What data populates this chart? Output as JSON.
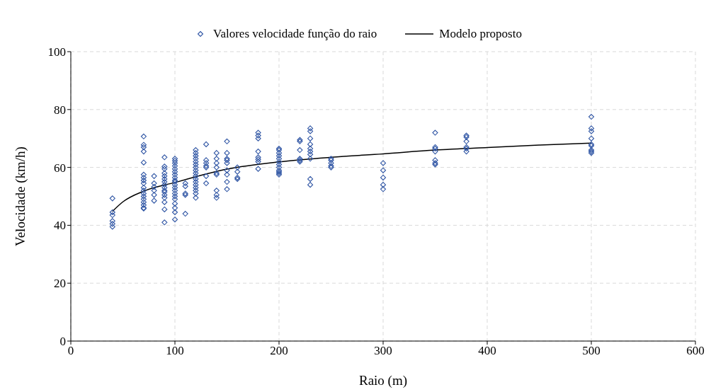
{
  "chart_data": {
    "type": "scatter",
    "xlabel": "Raio (m)",
    "ylabel": "Velocidade (km/h)",
    "xlim": [
      0,
      600
    ],
    "xticks": [
      0,
      100,
      200,
      300,
      400,
      500,
      600
    ],
    "ylim": [
      0,
      100
    ],
    "yticks": [
      0,
      20,
      40,
      60,
      80,
      100
    ],
    "grid": true,
    "legend": "top",
    "series": [
      {
        "name": "Valores velocidade função do raio",
        "marker": "diamond",
        "color": "#2f55a4",
        "x": [
          40,
          40,
          40,
          40,
          40,
          40,
          70,
          70,
          70,
          70,
          70,
          70,
          70,
          70,
          70,
          70,
          70,
          70,
          70,
          70,
          70,
          70,
          70,
          70,
          80,
          80,
          80,
          80,
          80,
          80,
          90,
          90,
          90,
          90,
          90,
          90,
          90,
          90,
          90,
          90,
          90,
          90,
          90,
          90,
          90,
          90,
          100,
          100,
          100,
          100,
          100,
          100,
          100,
          100,
          100,
          100,
          100,
          100,
          100,
          100,
          100,
          100,
          100,
          100,
          100,
          100,
          110,
          110,
          110,
          110,
          110,
          120,
          120,
          120,
          120,
          120,
          120,
          120,
          120,
          120,
          120,
          120,
          120,
          120,
          120,
          120,
          120,
          120,
          130,
          130,
          130,
          130,
          130,
          130,
          130,
          140,
          140,
          140,
          140,
          140,
          140,
          140,
          140,
          140,
          150,
          150,
          150,
          150,
          150,
          150,
          150,
          150,
          150,
          160,
          160,
          160,
          160,
          180,
          180,
          180,
          180,
          180,
          180,
          180,
          180,
          200,
          200,
          200,
          200,
          200,
          200,
          200,
          200,
          200,
          200,
          200,
          200,
          220,
          220,
          220,
          220,
          220,
          220,
          230,
          230,
          230,
          230,
          230,
          230,
          230,
          230,
          230,
          230,
          250,
          250,
          250,
          250,
          250,
          300,
          300,
          300,
          300,
          300,
          350,
          350,
          350,
          350,
          350,
          350,
          350,
          380,
          380,
          380,
          380,
          380,
          380,
          500,
          500,
          500,
          500,
          500,
          500,
          500,
          500,
          500
        ],
        "values": [
          49.3,
          44.5,
          43.5,
          41.5,
          40.5,
          39.5,
          70.7,
          67.8,
          67,
          65.5,
          61.7,
          57.5,
          56.5,
          55.5,
          54.5,
          53,
          52,
          51,
          50,
          49,
          48,
          47,
          46,
          45.8,
          57,
          54.5,
          53.3,
          52,
          50.5,
          48.5,
          63.5,
          60.3,
          59.5,
          58,
          57,
          56,
          55,
          54,
          53,
          52,
          51.5,
          50.5,
          49.5,
          48,
          45.5,
          41,
          63,
          62.3,
          61.5,
          60.5,
          59.5,
          58.5,
          57.5,
          56.5,
          55.5,
          55,
          54,
          53,
          52,
          51,
          50,
          49,
          47.5,
          46,
          44.5,
          42,
          54.5,
          53.5,
          51,
          50.5,
          44,
          66,
          65,
          64,
          63,
          62,
          61,
          60,
          59,
          58,
          57,
          56,
          55,
          54,
          53,
          52,
          51,
          49.5,
          68,
          62.5,
          61.5,
          60.5,
          60,
          57,
          54.5,
          65,
          63,
          61.5,
          60,
          58,
          57.5,
          52,
          50.5,
          49.5,
          69,
          65,
          63,
          62.5,
          61.5,
          59,
          57.5,
          55,
          52.5,
          60,
          58.5,
          56.5,
          56,
          72,
          71,
          70,
          65.5,
          63.5,
          62.8,
          62,
          59.5,
          66.5,
          66,
          65,
          64,
          63,
          62,
          61,
          60,
          59,
          58.5,
          58,
          57.5,
          69.5,
          69,
          66,
          63,
          62.5,
          62,
          73.5,
          72.5,
          70,
          68,
          66.5,
          65.5,
          64.5,
          63,
          56,
          54,
          63,
          62.5,
          61.5,
          60.5,
          60,
          61.5,
          59,
          56.5,
          54,
          52.5,
          72,
          67,
          66.5,
          65.5,
          62.5,
          61.5,
          61,
          71,
          70.5,
          69,
          67,
          66.5,
          65.5,
          77.5,
          73.5,
          72.5,
          70,
          68,
          67.5,
          66,
          65.5,
          65
        ]
      },
      {
        "name": "Modelo proposto",
        "type": "line",
        "color": "#000000",
        "x": [
          40,
          50,
          70,
          100,
          150,
          200,
          250,
          300,
          350,
          400,
          450,
          500
        ],
        "values": [
          44.8,
          48.1,
          51.8,
          54.8,
          59.4,
          61.9,
          63.5,
          64.7,
          66,
          66.9,
          67.7,
          68.4
        ]
      }
    ]
  }
}
